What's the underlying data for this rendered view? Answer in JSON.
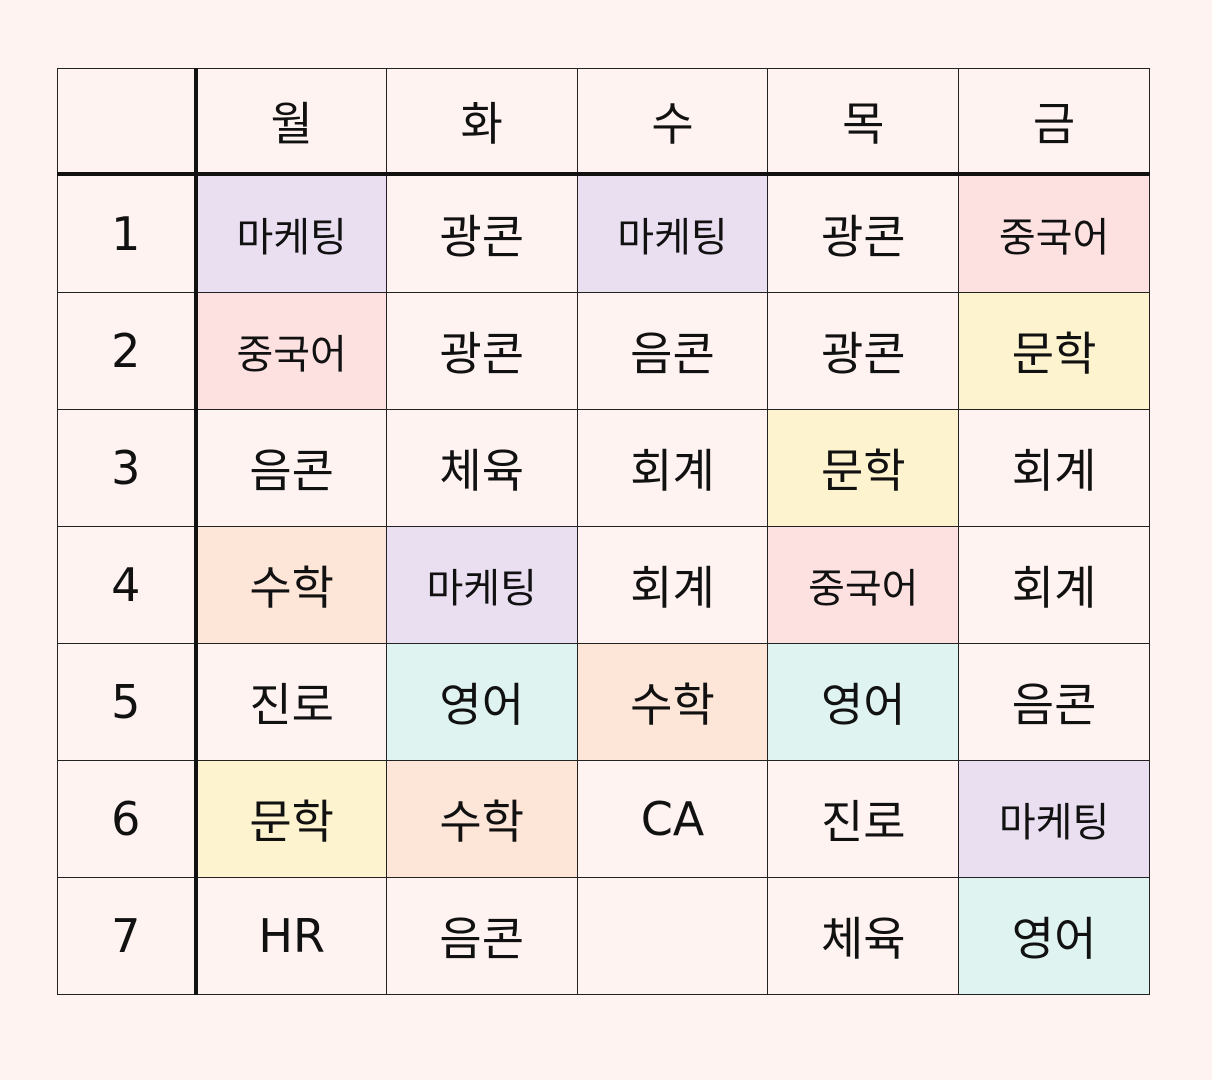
{
  "days": [
    "월",
    "화",
    "수",
    "목",
    "금"
  ],
  "colors": {
    "background": "#fff3f2",
    "마케팅": "#eadff1",
    "중국어": "#fde0e0",
    "문학": "#fdf4cf",
    "수학": "#fde5d7",
    "영어": "#dff3f1",
    "default": "#fff3f2"
  },
  "rows": [
    {
      "period": "1",
      "subjects": [
        "마케팅",
        "광콘",
        "마케팅",
        "광콘",
        "중국어"
      ]
    },
    {
      "period": "2",
      "subjects": [
        "중국어",
        "광콘",
        "음콘",
        "광콘",
        "문학"
      ]
    },
    {
      "period": "3",
      "subjects": [
        "음콘",
        "체육",
        "회계",
        "문학",
        "회계"
      ]
    },
    {
      "period": "4",
      "subjects": [
        "수학",
        "마케팅",
        "회계",
        "중국어",
        "회계"
      ]
    },
    {
      "period": "5",
      "subjects": [
        "진로",
        "영어",
        "수학",
        "영어",
        "음콘"
      ]
    },
    {
      "period": "6",
      "subjects": [
        "문학",
        "수학",
        "CA",
        "진로",
        "마케팅"
      ]
    },
    {
      "period": "7",
      "subjects": [
        "HR",
        "음콘",
        "",
        "체육",
        "영어"
      ]
    }
  ]
}
